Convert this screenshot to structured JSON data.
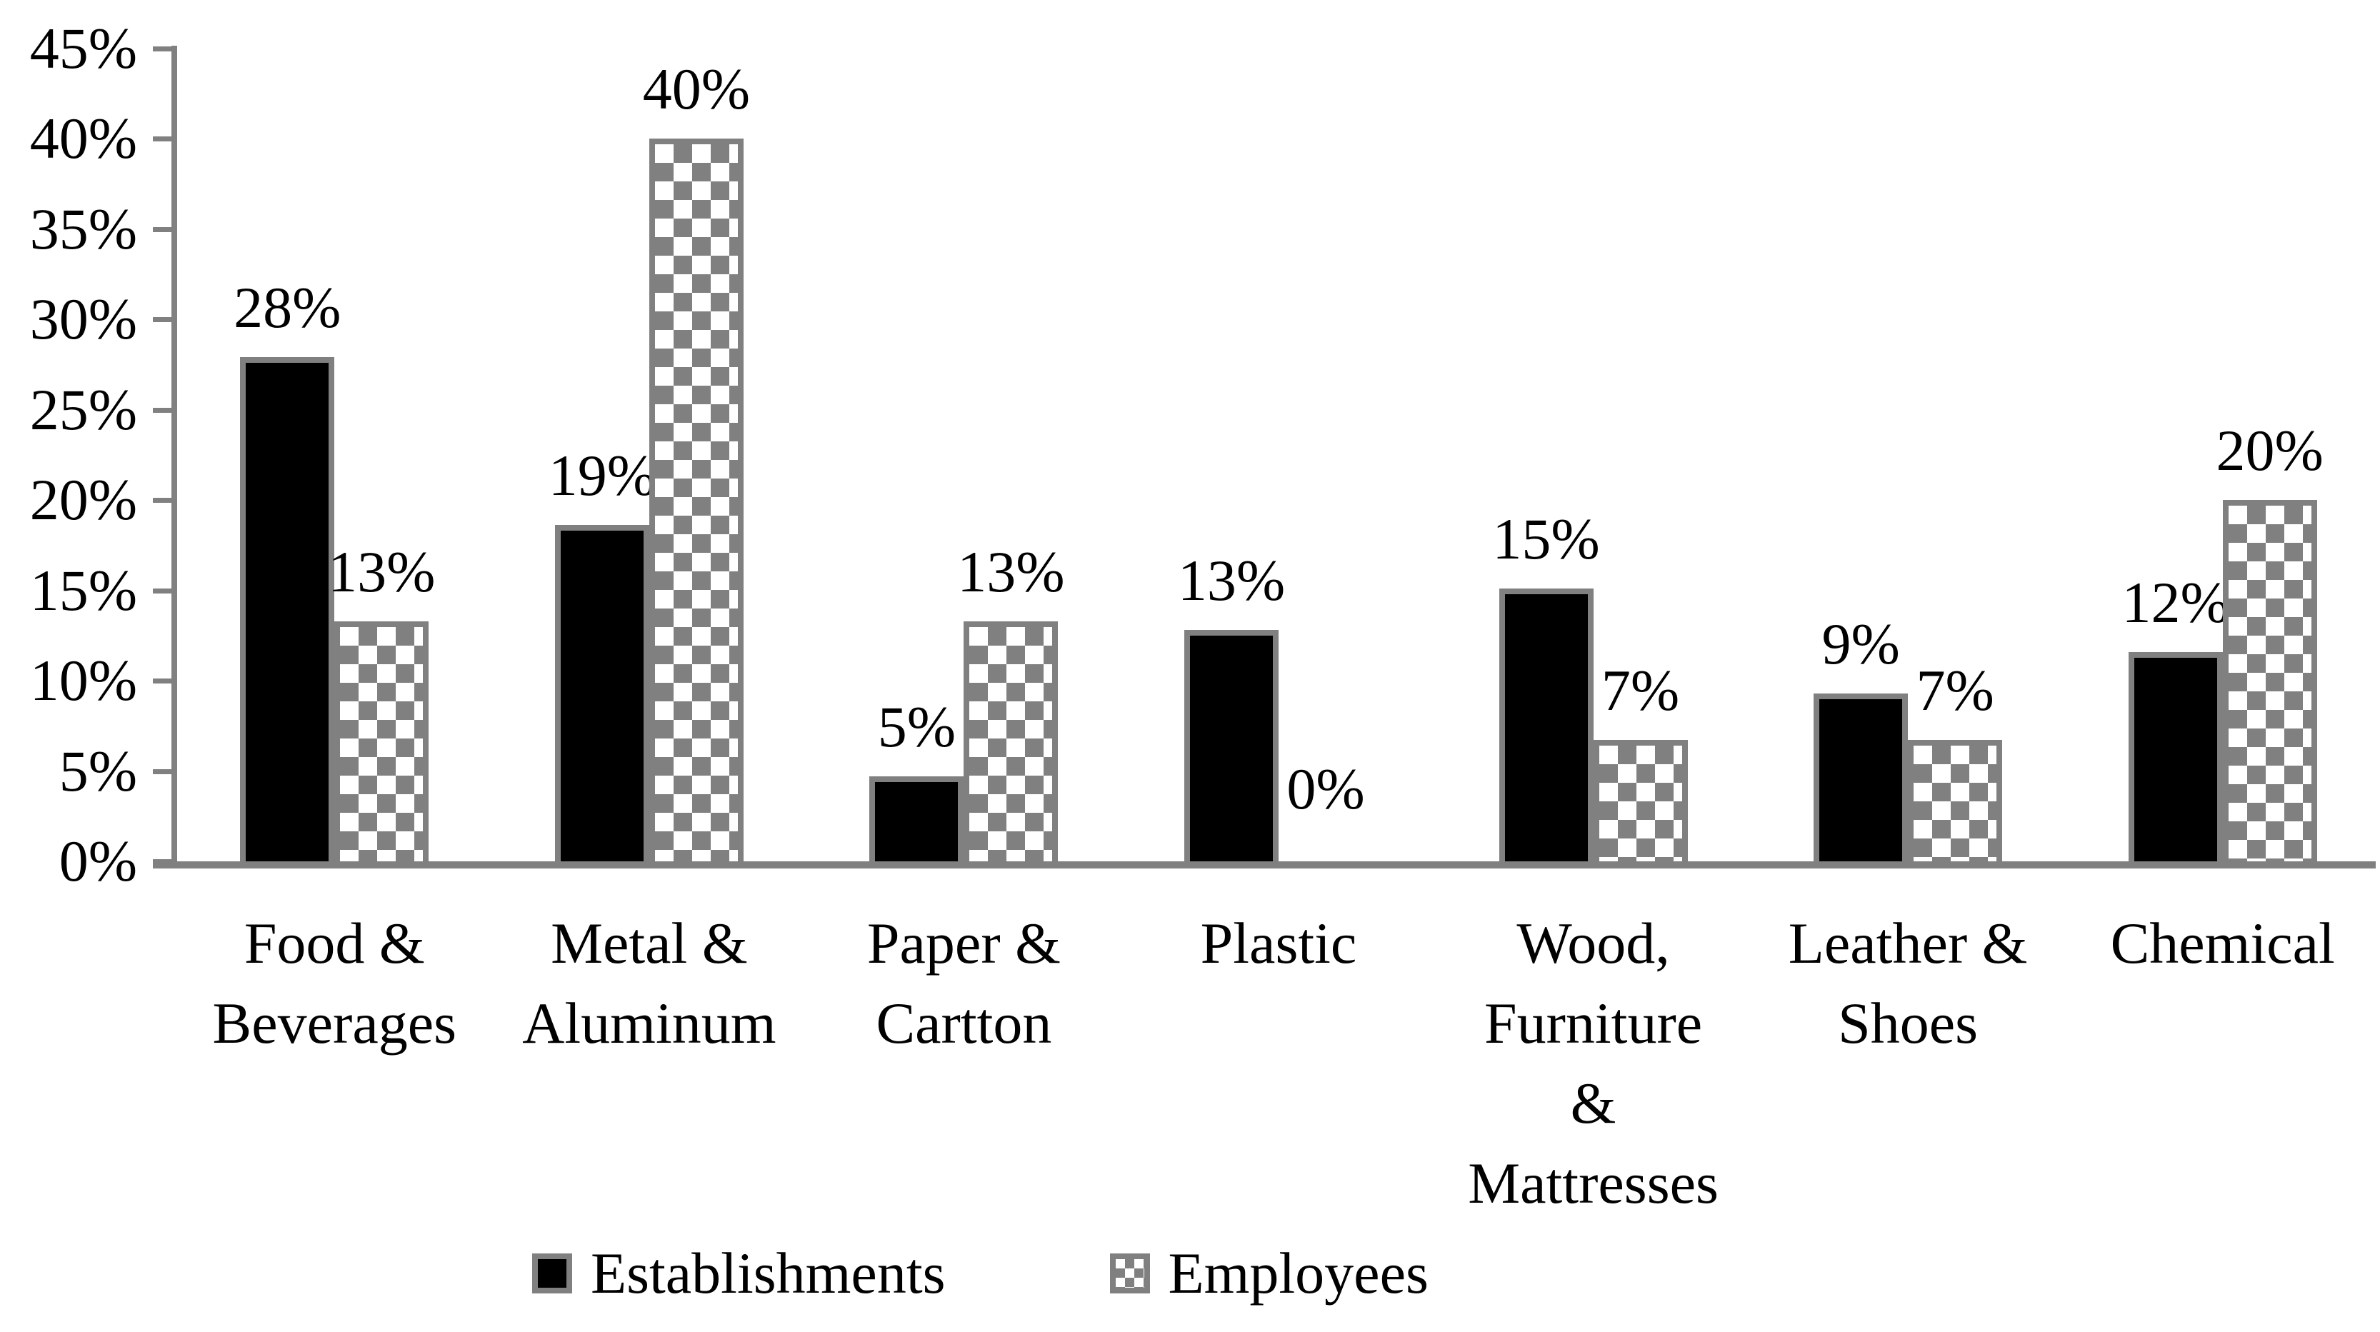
{
  "chart_data": {
    "type": "bar",
    "title": "",
    "categories": [
      "Food &\nBeverages",
      "Metal &\nAluminum",
      "Paper &\nCartton",
      "Plastic",
      "Wood,\nFurniture\n&\nMattresses",
      "Leather &\nShoes",
      "Chemical"
    ],
    "series": [
      {
        "name": "Establishments",
        "style": "solid-black",
        "values": [
          27.9,
          18.6,
          4.7,
          12.8,
          15.1,
          9.3,
          11.6
        ],
        "data_labels": [
          "28%",
          "19%",
          "5%",
          "13%",
          "15%",
          "9%",
          "12%"
        ]
      },
      {
        "name": "Employees",
        "style": "checkered",
        "values": [
          13.3,
          40.0,
          13.3,
          0.0,
          6.7,
          6.7,
          20.0
        ],
        "data_labels": [
          "13%",
          "40%",
          "13%",
          "0%",
          "7%",
          "7%",
          "20%"
        ]
      }
    ],
    "y_axis": {
      "min": 0,
      "max": 45,
      "step": 5,
      "tick_labels": [
        "0%",
        "5%",
        "10%",
        "15%",
        "20%",
        "25%",
        "30%",
        "35%",
        "40%",
        "45%"
      ]
    },
    "legend": {
      "position": "bottom",
      "entries": [
        "Establishments",
        "Employees"
      ]
    },
    "grid": false,
    "colors": {
      "bar_fill": "#000000",
      "pattern_gray": "#808080",
      "axis_gray": "#808080",
      "background": "#ffffff",
      "text": "#000000"
    }
  }
}
